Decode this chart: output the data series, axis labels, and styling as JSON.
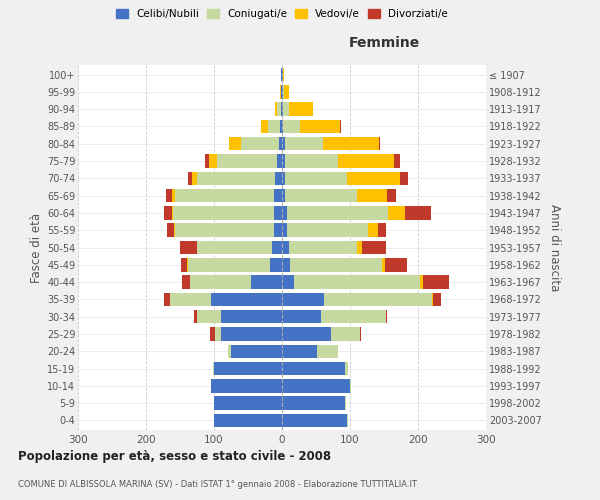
{
  "age_groups": [
    "0-4",
    "5-9",
    "10-14",
    "15-19",
    "20-24",
    "25-29",
    "30-34",
    "35-39",
    "40-44",
    "45-49",
    "50-54",
    "55-59",
    "60-64",
    "65-69",
    "70-74",
    "75-79",
    "80-84",
    "85-89",
    "90-94",
    "95-99",
    "100+"
  ],
  "birth_years": [
    "2003-2007",
    "1998-2002",
    "1993-1997",
    "1988-1992",
    "1983-1987",
    "1978-1982",
    "1973-1977",
    "1968-1972",
    "1963-1967",
    "1958-1962",
    "1953-1957",
    "1948-1952",
    "1943-1947",
    "1938-1942",
    "1933-1937",
    "1928-1932",
    "1923-1927",
    "1918-1922",
    "1913-1917",
    "1908-1912",
    "≤ 1907"
  ],
  "male": {
    "celibi": [
      100,
      100,
      105,
      100,
      75,
      90,
      90,
      105,
      45,
      18,
      15,
      12,
      12,
      12,
      10,
      8,
      5,
      3,
      2,
      1,
      1
    ],
    "coniugati": [
      0,
      0,
      0,
      2,
      5,
      8,
      35,
      60,
      90,
      120,
      110,
      145,
      148,
      145,
      115,
      88,
      55,
      18,
      5,
      1,
      0
    ],
    "vedovi": [
      0,
      0,
      0,
      0,
      0,
      0,
      0,
      0,
      0,
      2,
      0,
      2,
      2,
      5,
      8,
      12,
      18,
      10,
      3,
      1,
      0
    ],
    "divorziati": [
      0,
      0,
      0,
      0,
      0,
      8,
      5,
      8,
      12,
      8,
      25,
      10,
      12,
      8,
      5,
      5,
      0,
      0,
      0,
      0,
      0
    ]
  },
  "female": {
    "nubili": [
      95,
      92,
      100,
      92,
      52,
      72,
      58,
      62,
      18,
      12,
      10,
      8,
      8,
      5,
      5,
      5,
      5,
      2,
      2,
      1,
      1
    ],
    "coniugate": [
      2,
      2,
      2,
      5,
      30,
      42,
      95,
      158,
      185,
      135,
      100,
      118,
      148,
      105,
      90,
      78,
      55,
      25,
      8,
      2,
      0
    ],
    "vedove": [
      0,
      0,
      0,
      0,
      0,
      0,
      0,
      2,
      5,
      5,
      8,
      15,
      25,
      45,
      78,
      82,
      82,
      58,
      35,
      8,
      2
    ],
    "divorziate": [
      0,
      0,
      0,
      0,
      0,
      2,
      2,
      12,
      38,
      32,
      35,
      12,
      38,
      12,
      12,
      8,
      2,
      2,
      0,
      0,
      0
    ]
  },
  "colors": {
    "celibi": "#4472c4",
    "coniugati": "#c5d9a0",
    "vedovi": "#ffc000",
    "divorziati": "#c0392b"
  },
  "legend_labels": [
    "Celibi/Nubili",
    "Coniugati/e",
    "Vedovi/e",
    "Divorziati/e"
  ],
  "title": "Popolazione per età, sesso e stato civile - 2008",
  "subtitle": "COMUNE DI ALBISSOLA MARINA (SV) - Dati ISTAT 1° gennaio 2008 - Elaborazione TUTTITALIA.IT",
  "ylabel_left": "Fasce di età",
  "ylabel_right": "Anni di nascita",
  "xlabel_femmine": "Femmine",
  "xlim": 300,
  "bg_color": "#f0f0f0",
  "plot_bg": "#ffffff"
}
